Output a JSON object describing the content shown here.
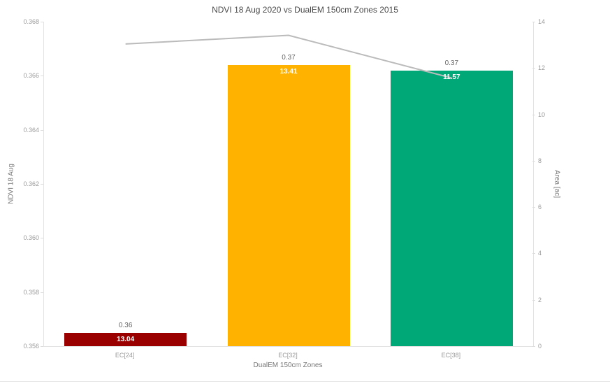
{
  "chart_data": {
    "type": "bar",
    "title": "NDVI 18 Aug  2020 vs DualEM 150cm Zones  2015",
    "xlabel": "DualEM 150cm Zones",
    "categories": [
      "EC[24]",
      "EC[32]",
      "EC[38]"
    ],
    "left_axis": {
      "label": "NDVI 18 Aug",
      "ylim": [
        0.356,
        0.368
      ],
      "ticks": [
        0.356,
        0.358,
        0.36,
        0.362,
        0.364,
        0.366,
        0.368
      ],
      "tick_labels": [
        "0.356",
        "0.358",
        "0.360",
        "0.362",
        "0.364",
        "0.366",
        "0.368"
      ]
    },
    "right_axis": {
      "label": "Area [ac]",
      "ylim": [
        0,
        14
      ],
      "ticks": [
        0,
        2,
        4,
        6,
        8,
        10,
        12,
        14
      ],
      "tick_labels": [
        "0",
        "2",
        "4",
        "6",
        "8",
        "10",
        "12",
        "14"
      ]
    },
    "series": [
      {
        "name": "NDVI 18 Aug",
        "type": "bar",
        "axis": "left",
        "values": [
          0.3565,
          0.3664,
          0.3662
        ],
        "value_labels": [
          "0.36",
          "0.37",
          "0.37"
        ],
        "colors": [
          "#9B0000",
          "#FFB300",
          "#00A878"
        ]
      },
      {
        "name": "Area [ac]",
        "type": "line",
        "axis": "right",
        "values": [
          13.04,
          13.41,
          11.57
        ],
        "value_labels": [
          "13.04",
          "13.41",
          "11.57"
        ],
        "color": "#bbbbbb"
      }
    ],
    "legend": "none",
    "grid": false
  }
}
